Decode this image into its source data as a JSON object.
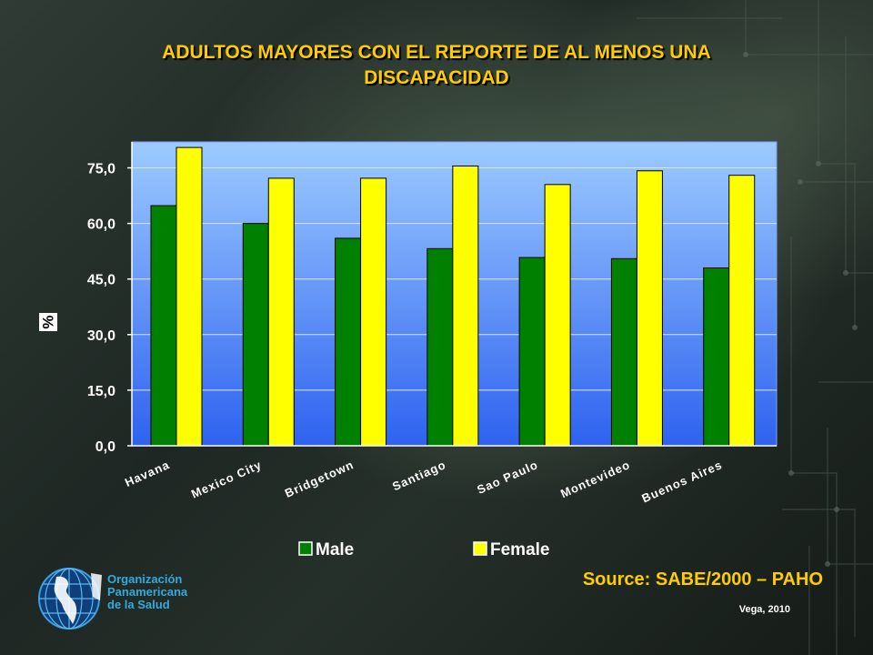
{
  "slide": {
    "title_line1": "ADULTOS MAYORES CON EL REPORTE DE AL MENOS UNA",
    "title_line2": "DISCAPACIDAD",
    "source": "Source: SABE/2000 – PAHO",
    "author_year": "Vega, 2010",
    "org_line1": "Organización",
    "org_line2": "Panamericana",
    "org_line3": "de la Salud"
  },
  "colors": {
    "title": "#ffcc00",
    "male": "#008000",
    "female": "#ffff00",
    "plot_top": "#9dcbff",
    "plot_bottom": "#2e62f0",
    "org_text": "#33aadd"
  },
  "chart_data": {
    "type": "bar",
    "categories": [
      "Havana",
      "Mexico City",
      "Bridgetown",
      "Santiago",
      "Sao Paulo",
      "Montevideo",
      "Buenos Aires"
    ],
    "series": [
      {
        "name": "Male",
        "values": [
          64.8,
          60.0,
          56.0,
          53.2,
          50.8,
          50.5,
          48.0
        ]
      },
      {
        "name": "Female",
        "values": [
          80.5,
          72.2,
          72.2,
          75.5,
          70.5,
          74.2,
          73.0
        ]
      }
    ],
    "ylabel": "%",
    "yticks": [
      "0,0",
      "15,0",
      "30,0",
      "45,0",
      "60,0",
      "75,0"
    ],
    "ytick_values": [
      0,
      15,
      30,
      45,
      60,
      75
    ],
    "ylim": [
      0,
      82
    ],
    "grid": true,
    "legend_position": "bottom"
  }
}
